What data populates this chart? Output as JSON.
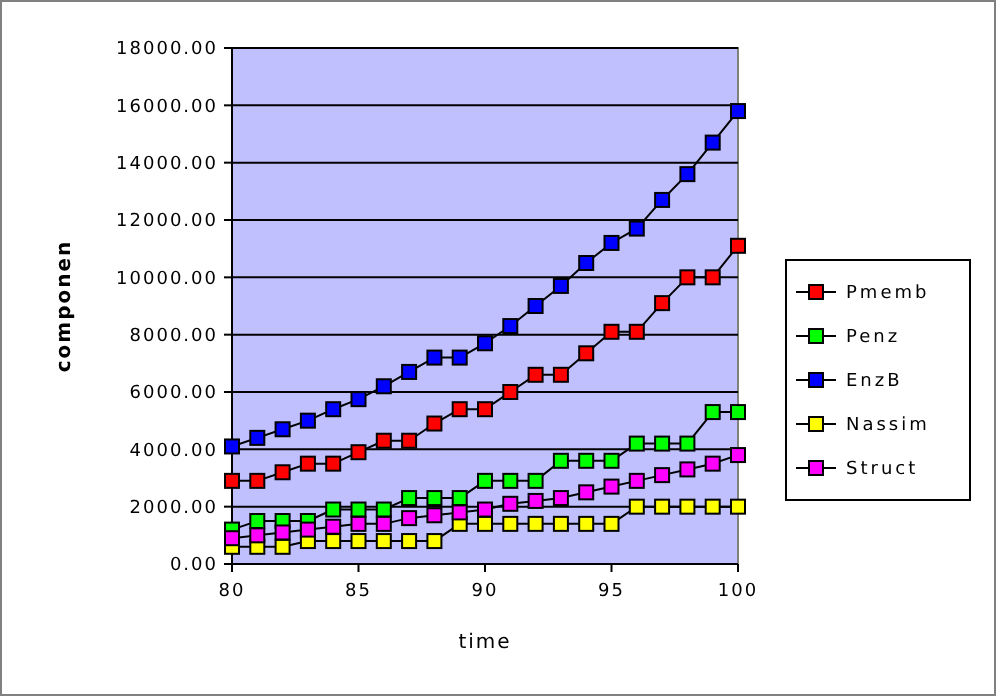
{
  "chart_data": {
    "type": "line",
    "xlabel": "time",
    "ylabel": "componen",
    "x": [
      80,
      81,
      82,
      83,
      84,
      85,
      86,
      87,
      88,
      89,
      90,
      91,
      92,
      93,
      94,
      95,
      96,
      97,
      98,
      99,
      100
    ],
    "xlim": [
      80,
      100
    ],
    "xticks": [
      80,
      85,
      90,
      95,
      100
    ],
    "ylim": [
      0,
      18000
    ],
    "yticks": [
      {
        "value": 0,
        "label": "0.00"
      },
      {
        "value": 2000,
        "label": "2000.00"
      },
      {
        "value": 4000,
        "label": "4000.00"
      },
      {
        "value": 6000,
        "label": "6000.00"
      },
      {
        "value": 8000,
        "label": "8000.00"
      },
      {
        "value": 10000,
        "label": "10000.00"
      },
      {
        "value": 12000,
        "label": "12000.00"
      },
      {
        "value": 14000,
        "label": "14000.00"
      },
      {
        "value": 16000,
        "label": "16000.00"
      },
      {
        "value": 18000,
        "label": "18000.00"
      }
    ],
    "grid": "y",
    "legend": "right",
    "marker": "square",
    "line_style": "solid",
    "series": [
      {
        "name": "Pmemb",
        "color": "#ff0000",
        "values": [
          2900,
          2900,
          3200,
          3500,
          3500,
          3900,
          4300,
          4300,
          4900,
          5400,
          5400,
          6000,
          6600,
          6600,
          7350,
          8100,
          8100,
          9100,
          10000,
          10000,
          11100
        ]
      },
      {
        "name": "Penz",
        "color": "#00ff00",
        "values": [
          1200,
          1500,
          1500,
          1500,
          1900,
          1900,
          1900,
          2300,
          2300,
          2300,
          2900,
          2900,
          2900,
          3600,
          3600,
          3600,
          4200,
          4200,
          4200,
          5300,
          5300
        ]
      },
      {
        "name": "EnzB",
        "color": "#0000ff",
        "values": [
          4100,
          4400,
          4700,
          5000,
          5400,
          5750,
          6200,
          6700,
          7200,
          7200,
          7700,
          8300,
          9000,
          9700,
          10500,
          11200,
          11700,
          12700,
          13600,
          14700,
          15800
        ]
      },
      {
        "name": "Nassim",
        "color": "#ffff00",
        "values": [
          600,
          600,
          600,
          800,
          800,
          800,
          800,
          800,
          800,
          1400,
          1400,
          1400,
          1400,
          1400,
          1400,
          1400,
          2000,
          2000,
          2000,
          2000,
          2000
        ]
      },
      {
        "name": "Struct",
        "color": "#ff00ff",
        "values": [
          900,
          1000,
          1100,
          1200,
          1300,
          1400,
          1400,
          1600,
          1700,
          1800,
          1900,
          2100,
          2200,
          2300,
          2500,
          2700,
          2900,
          3100,
          3300,
          3500,
          3800
        ]
      }
    ]
  }
}
